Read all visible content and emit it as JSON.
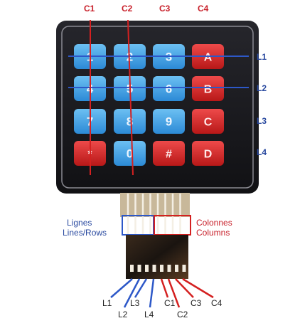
{
  "columns": [
    "C1",
    "C2",
    "C3",
    "C4"
  ],
  "rows": [
    "L1",
    "L2",
    "L3",
    "L4"
  ],
  "keys": [
    [
      {
        "label": "1",
        "kind": "blue"
      },
      {
        "label": "2",
        "kind": "blue"
      },
      {
        "label": "3",
        "kind": "blue"
      },
      {
        "label": "A",
        "kind": "red"
      }
    ],
    [
      {
        "label": "4",
        "kind": "blue"
      },
      {
        "label": "5",
        "kind": "blue"
      },
      {
        "label": "6",
        "kind": "blue"
      },
      {
        "label": "B",
        "kind": "red"
      }
    ],
    [
      {
        "label": "7",
        "kind": "blue"
      },
      {
        "label": "8",
        "kind": "blue"
      },
      {
        "label": "9",
        "kind": "blue"
      },
      {
        "label": "C",
        "kind": "red"
      }
    ],
    [
      {
        "label": "*",
        "kind": "red"
      },
      {
        "label": "0",
        "kind": "blue"
      },
      {
        "label": "#",
        "kind": "red"
      },
      {
        "label": "D",
        "kind": "red"
      }
    ]
  ],
  "connector": {
    "lines_label": "Lignes",
    "lines_label_en": "Lines/Rows",
    "columns_label": "Colonnes",
    "columns_label_en": "Columns"
  },
  "pins": [
    "L1",
    "L2",
    "L3",
    "L4",
    "C1",
    "C2",
    "C3",
    "C4"
  ],
  "footer_text": "",
  "colors": {
    "panel": "#17171b",
    "key_blue": "#3a9ee2",
    "key_red": "#d42626",
    "wire_red": "#d42020",
    "wire_blue": "#2d58c8"
  }
}
